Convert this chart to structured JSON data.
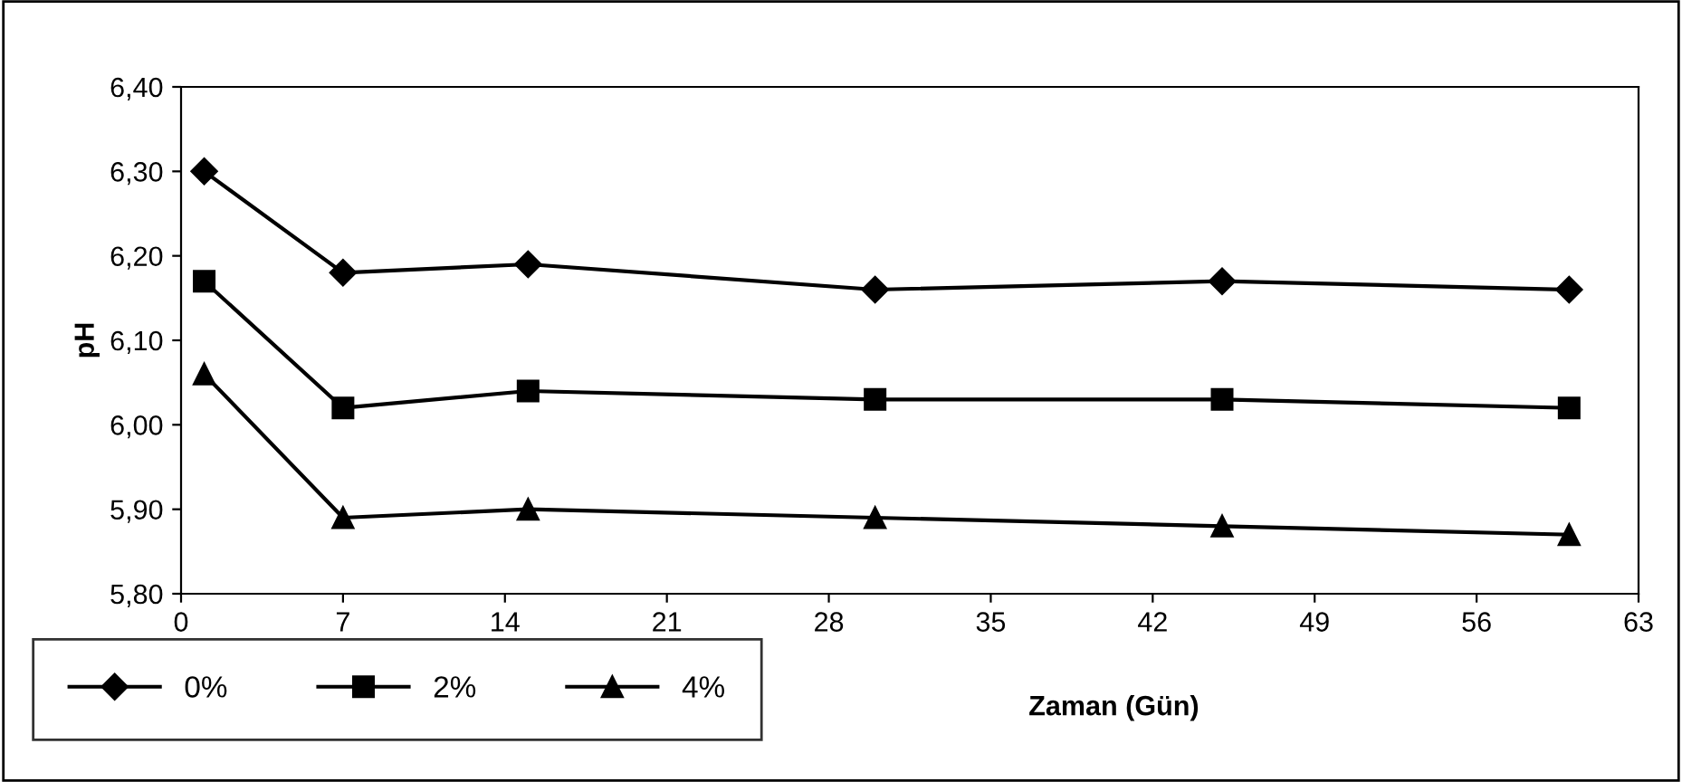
{
  "chart_data": {
    "type": "line",
    "xlabel": "Zaman (Gün)",
    "ylabel": "pH",
    "x": [
      1,
      7,
      15,
      30,
      45,
      60
    ],
    "series": [
      {
        "name": "0%",
        "color": "#000000",
        "marker": "diamond",
        "values": [
          6.3,
          6.18,
          6.19,
          6.16,
          6.17,
          6.16
        ]
      },
      {
        "name": "2%",
        "color": "#000000",
        "marker": "square",
        "values": [
          6.17,
          6.02,
          6.04,
          6.03,
          6.03,
          6.02
        ]
      },
      {
        "name": "4%",
        "color": "#000000",
        "marker": "triangle",
        "values": [
          6.06,
          5.89,
          5.9,
          5.89,
          5.88,
          5.87
        ]
      }
    ],
    "xlim": [
      0,
      63
    ],
    "xticks": [
      0,
      7,
      14,
      21,
      28,
      35,
      42,
      49,
      56,
      63
    ],
    "ylim": [
      5.8,
      6.4
    ],
    "yticks": [
      {
        "value": 5.8,
        "label": "5,80"
      },
      {
        "value": 5.9,
        "label": "5,90"
      },
      {
        "value": 6.0,
        "label": "6,00"
      },
      {
        "value": 6.1,
        "label": "6,10"
      },
      {
        "value": 6.2,
        "label": "6,20"
      },
      {
        "value": 6.3,
        "label": "6,30"
      },
      {
        "value": 6.4,
        "label": "6,40"
      }
    ],
    "grid": false,
    "legend": "bottom left",
    "line_style": "solid"
  }
}
